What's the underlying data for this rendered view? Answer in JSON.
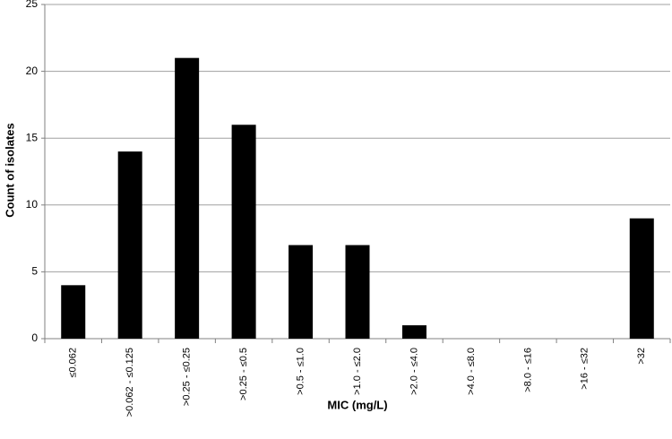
{
  "chart_data": {
    "type": "bar",
    "x_label": "MIC (mg/L)",
    "y_label": "Count of isolates",
    "categories": [
      "≤0.062",
      ">0.062 - ≤0.125",
      ">0.25 - ≤0.25",
      ">0.25 - ≤0.5",
      ">0.5 - ≤1.0",
      ">1.0 - ≤2.0",
      ">2.0 - ≤4.0",
      ">4.0 - ≤8.0",
      ">8.0 - ≤16",
      ">16 - ≤32",
      ">32"
    ],
    "values": [
      4,
      14,
      21,
      16,
      7,
      7,
      1,
      0,
      0,
      0,
      9
    ],
    "color": "#000000",
    "ylim": [
      0,
      25
    ],
    "yticks": [
      0,
      5,
      10,
      15,
      20,
      25
    ],
    "grid": true
  }
}
